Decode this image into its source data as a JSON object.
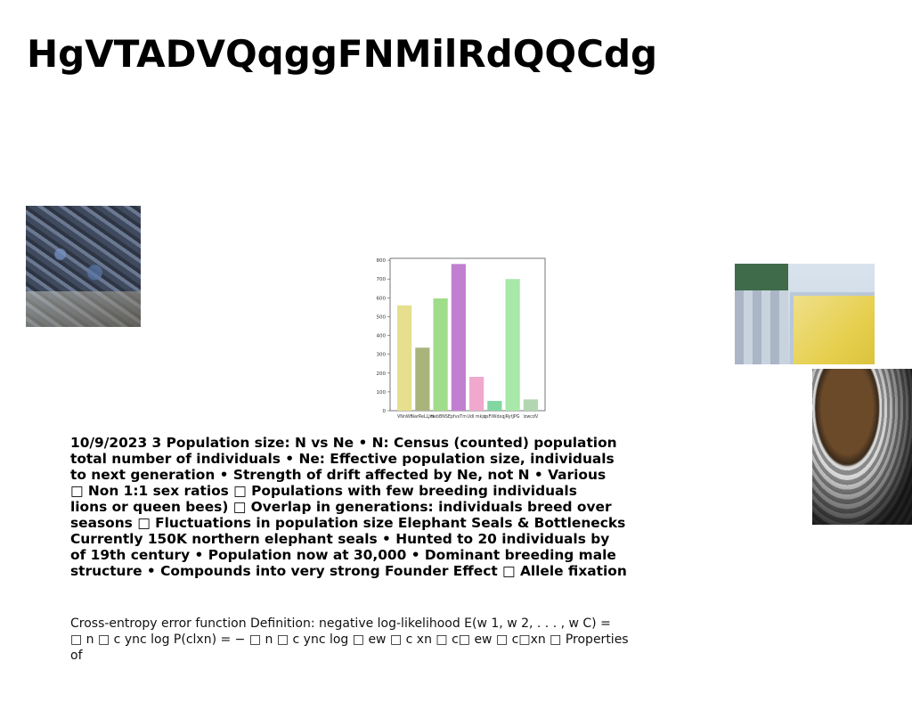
{
  "slide": {
    "title": "HgVTADVQqggFNMilRdQQCdg",
    "body_text": "10/9/2023 3 Population size: N vs Ne • N: Census (counted) population\ntotal number of individuals • Ne: Effective population size, individuals\nto next generation • Strength of drift affected by Ne, not N • Various\n□ Non 1:1 sex ratios □ Populations with few breeding individuals\nlions or queen bees) □ Overlap in generations: individuals breed over\nseasons □ Fluctuations in population size Elephant Seals & Bottlenecks\nCurrently 150K northern elephant seals • Hunted to 20 individuals by\nof 19th century • Population now at 30,000 • Dominant breeding male\nstructure • Compounds into very strong Founder Effect □ Allele fixation",
    "sub_text": "Cross-entropy error function Definition: negative log-likelihood E(w 1, w 2, . . . , w C) =\n□ n □ c ync log P(clxn) = − □ n □ c ync log □ ew □ c xn □ c□ ew □ c□xn □ Properties of"
  },
  "images": [
    {
      "name": "city-aerial-photo"
    },
    {
      "name": "pool-aerial-photo"
    },
    {
      "name": "tunnel-photo"
    }
  ],
  "chart_data": {
    "type": "bar",
    "categories": [
      "VNnWf",
      "NarReLLJm",
      "HebBNSE",
      "pfvxTm",
      "Udl mkjq",
      "qsFIWdxqj",
      "RytJPG",
      "lzwcdV"
    ],
    "values": [
      560,
      335,
      597,
      780,
      180,
      52,
      700,
      60
    ],
    "colors": [
      "#e6e08e",
      "#a9b47c",
      "#9fdd8a",
      "#c07fd0",
      "#f0a8cc",
      "#82d6a2",
      "#a8e8a8",
      "#b2d6b0"
    ],
    "yticks": [
      0,
      100,
      200,
      300,
      400,
      500,
      600,
      700,
      800
    ],
    "ylim": [
      0,
      810
    ],
    "title": "",
    "xlabel": "",
    "ylabel": ""
  }
}
